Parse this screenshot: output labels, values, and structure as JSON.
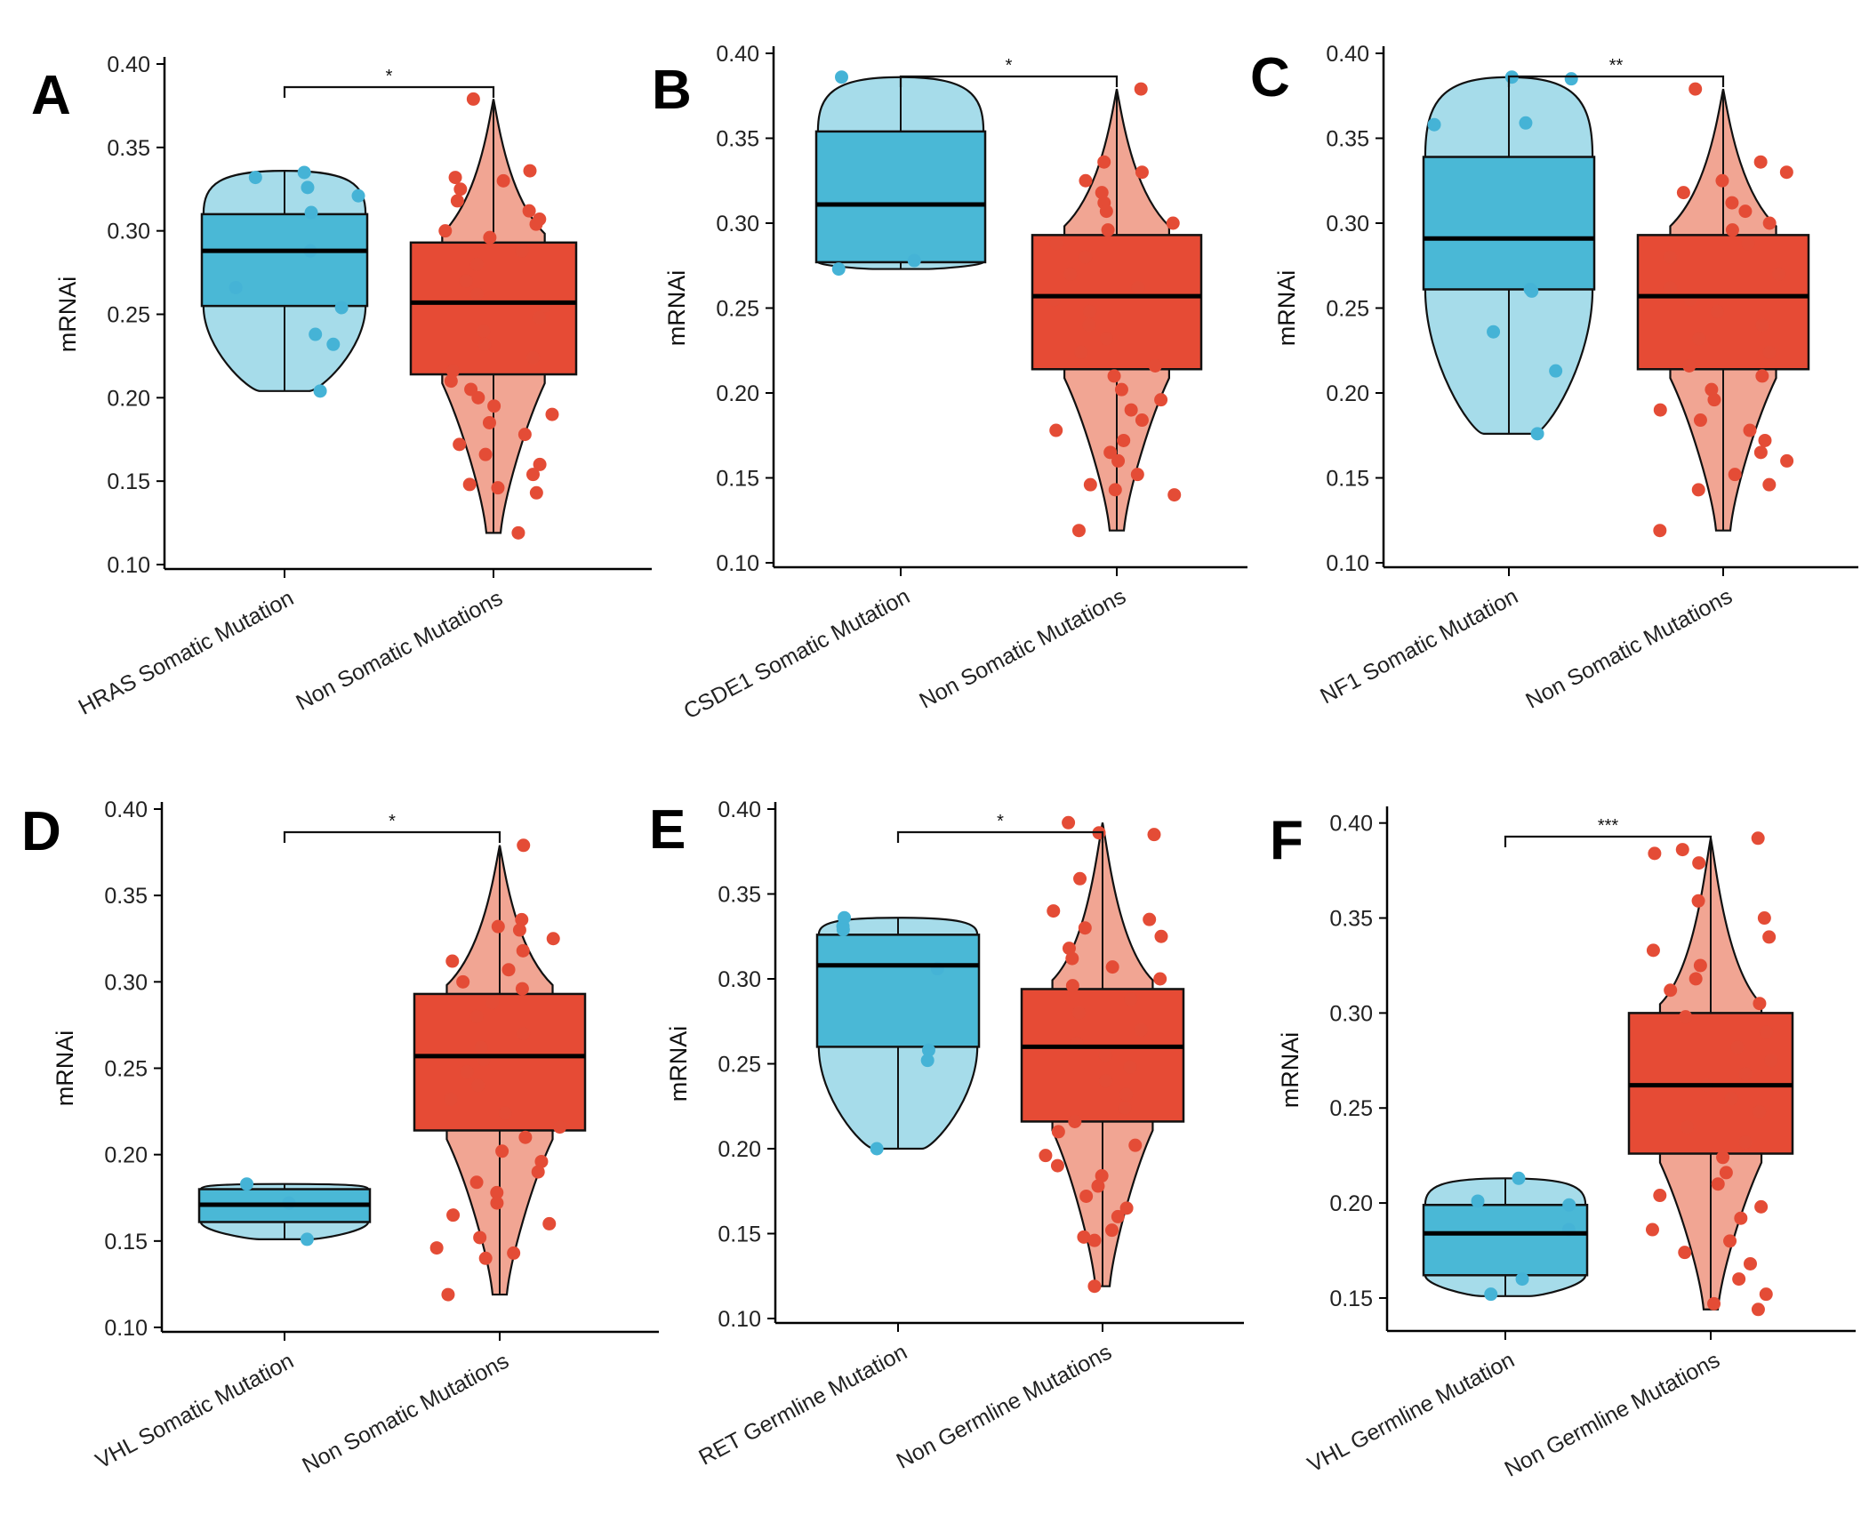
{
  "figure": {
    "colors": {
      "mutation_box": "#4ab8d6",
      "mutation_violin": "#a6dcea",
      "mutation_point": "#45b3d6",
      "non_box": "#e64b35",
      "non_violin": "#f1a593",
      "non_point": "#e44c36",
      "axis": "#000000"
    }
  },
  "chart_data": [
    {
      "panel": "A",
      "type": "box",
      "ylabel": "mRNAi",
      "ylim": [
        0.1,
        0.4
      ],
      "yticks": [
        "0.10",
        "0.15",
        "0.20",
        "0.25",
        "0.30",
        "0.35",
        "0.40"
      ],
      "categories": [
        "HRAS Somatic Mutation",
        "Non Somatic Mutations"
      ],
      "significance": "*",
      "series": [
        {
          "name": "HRAS Somatic Mutation",
          "q1": 0.255,
          "median": 0.288,
          "q3": 0.31,
          "violin_min": 0.204,
          "violin_max": 0.336,
          "points": [
            0.326,
            0.332,
            0.335,
            0.321,
            0.311,
            0.288,
            0.266,
            0.254,
            0.238,
            0.232,
            0.204
          ]
        },
        {
          "name": "Non Somatic Mutations",
          "q1": 0.214,
          "median": 0.257,
          "q3": 0.293,
          "violin_min": 0.119,
          "violin_max": 0.379,
          "points": [
            0.379,
            0.336,
            0.332,
            0.33,
            0.325,
            0.318,
            0.312,
            0.307,
            0.304,
            0.3,
            0.296,
            0.288,
            0.28,
            0.27,
            0.262,
            0.255,
            0.248,
            0.24,
            0.232,
            0.224,
            0.216,
            0.21,
            0.205,
            0.2,
            0.195,
            0.19,
            0.185,
            0.178,
            0.172,
            0.166,
            0.16,
            0.154,
            0.148,
            0.146,
            0.143,
            0.119
          ]
        }
      ]
    },
    {
      "panel": "B",
      "type": "box",
      "ylabel": "mRNAi",
      "ylim": [
        0.1,
        0.4
      ],
      "yticks": [
        "0.10",
        "0.15",
        "0.20",
        "0.25",
        "0.30",
        "0.35",
        "0.40"
      ],
      "categories": [
        "CSDE1 Somatic Mutation",
        "Non Somatic Mutations"
      ],
      "significance": "*",
      "series": [
        {
          "name": "CSDE1 Somatic Mutation",
          "q1": 0.277,
          "median": 0.311,
          "q3": 0.354,
          "violin_min": 0.273,
          "violin_max": 0.386,
          "points": [
            0.386,
            0.278,
            0.273
          ]
        },
        {
          "name": "Non Somatic Mutations",
          "q1": 0.214,
          "median": 0.257,
          "q3": 0.293,
          "violin_min": 0.119,
          "violin_max": 0.379,
          "points": [
            0.379,
            0.336,
            0.33,
            0.325,
            0.318,
            0.312,
            0.307,
            0.3,
            0.296,
            0.288,
            0.28,
            0.27,
            0.262,
            0.255,
            0.248,
            0.24,
            0.232,
            0.224,
            0.216,
            0.21,
            0.202,
            0.196,
            0.19,
            0.184,
            0.178,
            0.172,
            0.165,
            0.16,
            0.152,
            0.146,
            0.143,
            0.14,
            0.119
          ]
        }
      ]
    },
    {
      "panel": "C",
      "type": "box",
      "ylabel": "mRNAi",
      "ylim": [
        0.1,
        0.4
      ],
      "yticks": [
        "0.10",
        "0.15",
        "0.20",
        "0.25",
        "0.30",
        "0.35",
        "0.40"
      ],
      "categories": [
        "NF1 Somatic Mutation",
        "Non Somatic Mutations"
      ],
      "significance": "**",
      "series": [
        {
          "name": "NF1 Somatic Mutation",
          "q1": 0.261,
          "median": 0.291,
          "q3": 0.339,
          "violin_min": 0.176,
          "violin_max": 0.386,
          "points": [
            0.386,
            0.385,
            0.359,
            0.358,
            0.261,
            0.26,
            0.236,
            0.213,
            0.176
          ]
        },
        {
          "name": "Non Somatic Mutations",
          "q1": 0.214,
          "median": 0.257,
          "q3": 0.293,
          "violin_min": 0.119,
          "violin_max": 0.379,
          "points": [
            0.379,
            0.336,
            0.33,
            0.325,
            0.318,
            0.312,
            0.307,
            0.3,
            0.296,
            0.288,
            0.28,
            0.27,
            0.262,
            0.255,
            0.248,
            0.24,
            0.232,
            0.224,
            0.216,
            0.21,
            0.202,
            0.196,
            0.19,
            0.184,
            0.178,
            0.172,
            0.165,
            0.16,
            0.152,
            0.146,
            0.143,
            0.119
          ]
        }
      ]
    },
    {
      "panel": "D",
      "type": "box",
      "ylabel": "mRNAi",
      "ylim": [
        0.1,
        0.4
      ],
      "yticks": [
        "0.10",
        "0.15",
        "0.20",
        "0.25",
        "0.30",
        "0.35",
        "0.40"
      ],
      "categories": [
        "VHL Somatic Mutation",
        "Non Somatic Mutations"
      ],
      "significance": "*",
      "series": [
        {
          "name": "VHL Somatic Mutation",
          "q1": 0.161,
          "median": 0.171,
          "q3": 0.18,
          "violin_min": 0.151,
          "violin_max": 0.183,
          "points": [
            0.183,
            0.172,
            0.151
          ]
        },
        {
          "name": "Non Somatic Mutations",
          "q1": 0.214,
          "median": 0.257,
          "q3": 0.293,
          "violin_min": 0.119,
          "violin_max": 0.379,
          "points": [
            0.379,
            0.336,
            0.332,
            0.33,
            0.325,
            0.318,
            0.312,
            0.307,
            0.3,
            0.296,
            0.288,
            0.28,
            0.27,
            0.262,
            0.255,
            0.248,
            0.24,
            0.232,
            0.224,
            0.216,
            0.21,
            0.202,
            0.196,
            0.19,
            0.184,
            0.178,
            0.172,
            0.165,
            0.16,
            0.152,
            0.146,
            0.143,
            0.14,
            0.119
          ]
        }
      ]
    },
    {
      "panel": "E",
      "type": "box",
      "ylabel": "mRNAi",
      "ylim": [
        0.1,
        0.4
      ],
      "yticks": [
        "0.10",
        "0.15",
        "0.20",
        "0.25",
        "0.30",
        "0.35",
        "0.40"
      ],
      "categories": [
        "RET Germline Mutation",
        "Non Germline Mutations"
      ],
      "significance": "*",
      "series": [
        {
          "name": "RET Germline Mutation",
          "q1": 0.26,
          "median": 0.308,
          "q3": 0.326,
          "violin_min": 0.2,
          "violin_max": 0.336,
          "points": [
            0.336,
            0.331,
            0.329,
            0.306,
            0.258,
            0.252,
            0.2
          ]
        },
        {
          "name": "Non Germline Mutations",
          "q1": 0.216,
          "median": 0.26,
          "q3": 0.294,
          "violin_min": 0.119,
          "violin_max": 0.392,
          "points": [
            0.392,
            0.386,
            0.385,
            0.359,
            0.34,
            0.335,
            0.33,
            0.325,
            0.318,
            0.312,
            0.307,
            0.3,
            0.296,
            0.288,
            0.28,
            0.27,
            0.262,
            0.255,
            0.248,
            0.24,
            0.232,
            0.224,
            0.216,
            0.21,
            0.202,
            0.196,
            0.19,
            0.184,
            0.178,
            0.172,
            0.165,
            0.16,
            0.152,
            0.148,
            0.146,
            0.119
          ]
        }
      ]
    },
    {
      "panel": "F",
      "type": "box",
      "ylabel": "mRNAi",
      "ylim": [
        0.135,
        0.405
      ],
      "yticks": [
        "0.15",
        "0.20",
        "0.25",
        "0.30",
        "0.35",
        "0.40"
      ],
      "categories": [
        "VHL Germline Mutation",
        "Non Germline Mutations"
      ],
      "significance": "***",
      "series": [
        {
          "name": "VHL Germline Mutation",
          "q1": 0.162,
          "median": 0.184,
          "q3": 0.199,
          "violin_min": 0.151,
          "violin_max": 0.213,
          "points": [
            0.213,
            0.201,
            0.199,
            0.186,
            0.16,
            0.152
          ]
        },
        {
          "name": "Non Germline Mutations",
          "q1": 0.226,
          "median": 0.262,
          "q3": 0.3,
          "violin_min": 0.144,
          "violin_max": 0.392,
          "points": [
            0.392,
            0.386,
            0.384,
            0.379,
            0.359,
            0.35,
            0.34,
            0.333,
            0.325,
            0.318,
            0.312,
            0.305,
            0.298,
            0.29,
            0.282,
            0.275,
            0.268,
            0.262,
            0.255,
            0.248,
            0.24,
            0.232,
            0.224,
            0.216,
            0.21,
            0.204,
            0.198,
            0.192,
            0.186,
            0.18,
            0.174,
            0.168,
            0.16,
            0.152,
            0.147,
            0.144
          ]
        }
      ]
    }
  ]
}
